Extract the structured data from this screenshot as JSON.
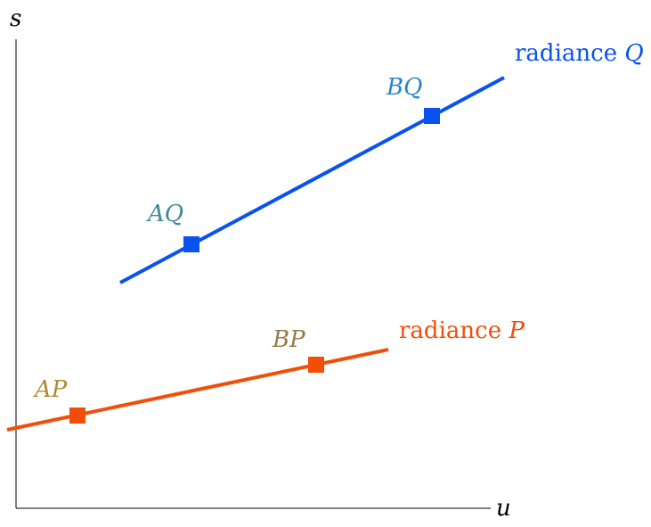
{
  "axes": {
    "y_label": "s",
    "x_label": "u"
  },
  "lines": {
    "q": {
      "label_text": "radiance ",
      "label_var": "Q",
      "color": "#0a52f0"
    },
    "p": {
      "label_text": "radiance ",
      "label_var": "P",
      "color": "#f24e0a"
    }
  },
  "points": {
    "aq": {
      "label": "AQ",
      "label_color": "#3e8899",
      "marker_color": "#0a52f0"
    },
    "bq": {
      "label": "BQ",
      "label_color": "#2a85c8",
      "marker_color": "#0a52f0"
    },
    "ap": {
      "label": "AP",
      "label_color": "#b08a32",
      "marker_color": "#f24e0a"
    },
    "bp": {
      "label": "BP",
      "label_color": "#9a7a45",
      "marker_color": "#f24e0a"
    }
  }
}
